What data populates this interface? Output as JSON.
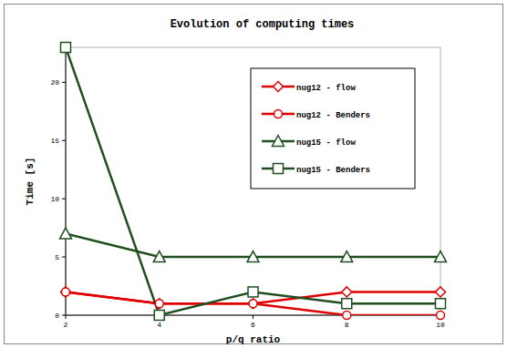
{
  "chart_data": {
    "type": "line",
    "title": "Evolution of computing times",
    "x_label": "p/q ratio",
    "y_label": "Time [s]",
    "x": [
      2,
      4,
      6,
      8,
      10
    ],
    "series": [
      {
        "name": "nug12 - flow",
        "color": "#e00000",
        "marker": "diamond",
        "values": [
          2,
          1,
          1,
          2,
          2
        ]
      },
      {
        "name": "nug12 - Benders",
        "color": "#e00000",
        "marker": "circle",
        "values": [
          2,
          1,
          1,
          0,
          0
        ]
      },
      {
        "name": "nug15 - flow",
        "color": "#1f4f1f",
        "marker": "triangle",
        "values": [
          7,
          5,
          5,
          5,
          5
        ]
      },
      {
        "name": "nug15 - Benders",
        "color": "#1f4f1f",
        "marker": "square",
        "values": [
          23,
          0,
          2,
          1,
          1
        ]
      }
    ],
    "xlim": [
      2,
      10
    ],
    "xticks": [
      2,
      4,
      6,
      8,
      10
    ],
    "ylim": [
      0,
      23
    ],
    "yticks": [
      0,
      5,
      10,
      15,
      20
    ],
    "grid": false,
    "legend": "upper right"
  }
}
